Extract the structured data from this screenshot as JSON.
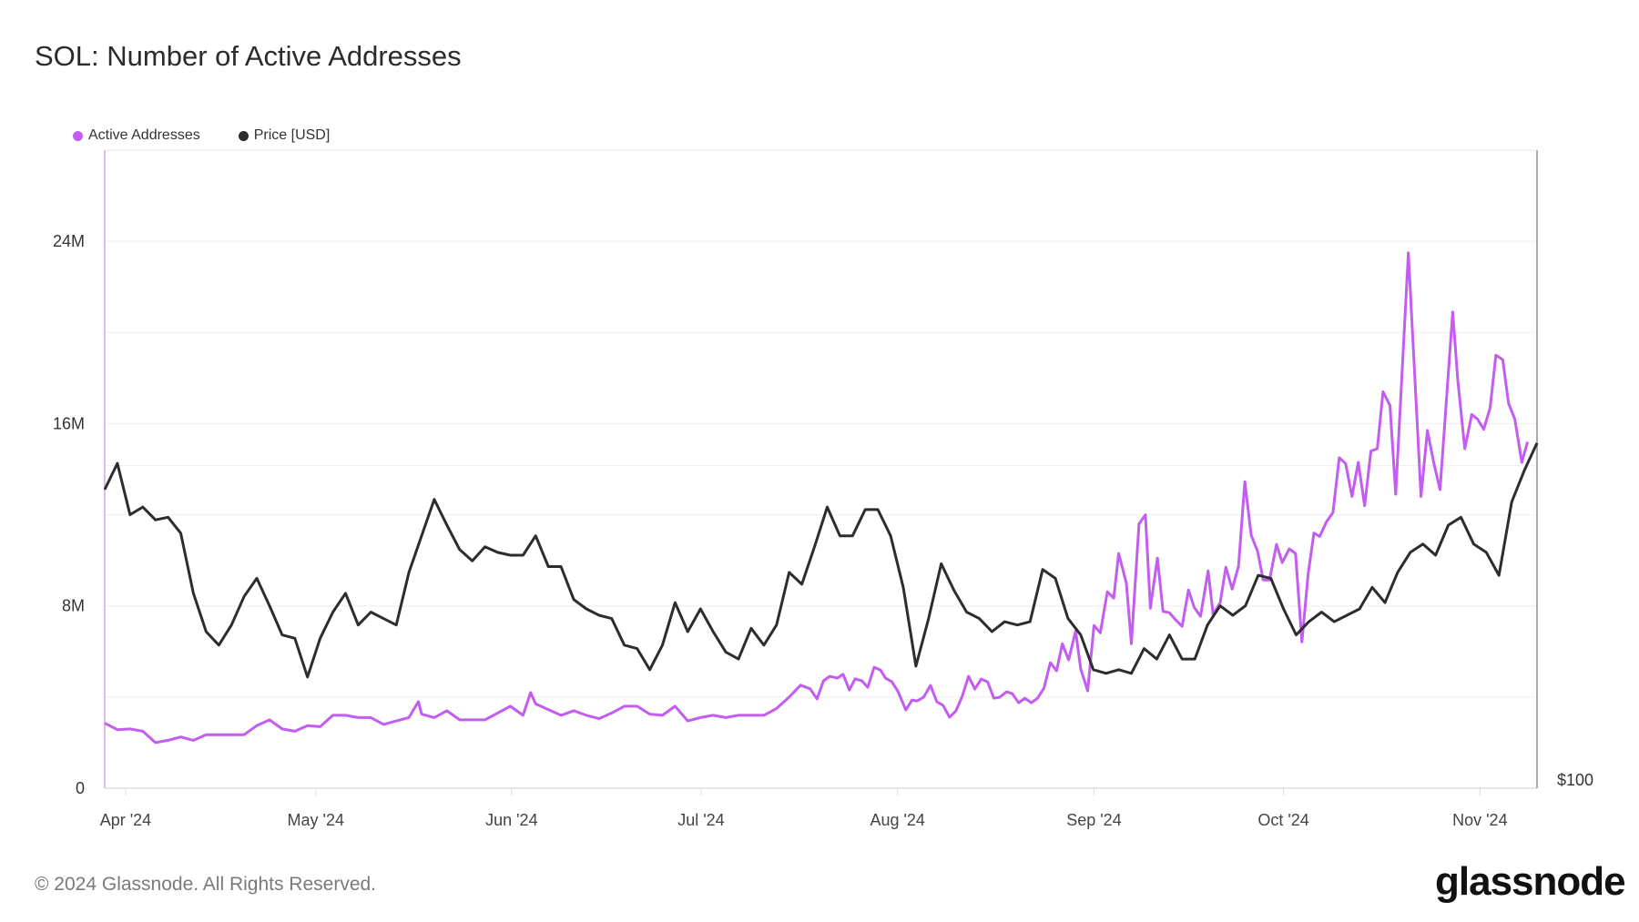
{
  "header": {
    "title": "SOL: Number of Active Addresses"
  },
  "footer": {
    "copyright": "© 2024 Glassnode. All Rights Reserved.",
    "logo": "glassnode"
  },
  "chart_data": {
    "type": "line",
    "title": "SOL: Number of Active Addresses",
    "legend": [
      {
        "label": "Active Addresses",
        "color": "#c35cf0"
      },
      {
        "label": "Price [USD]",
        "color": "#2d2d2d"
      }
    ],
    "legend_placement": "top-left",
    "x_range_days": [
      0,
      226
    ],
    "x_start_date": "2024-03-29",
    "x_ticks": [
      {
        "label": "Apr '24",
        "day": 3.3
      },
      {
        "label": "May '24",
        "day": 33.3
      },
      {
        "label": "Jun '24",
        "day": 64.2
      },
      {
        "label": "Jul '24",
        "day": 94.1
      },
      {
        "label": "Aug '24",
        "day": 125.1
      },
      {
        "label": "Sep '24",
        "day": 156.1
      },
      {
        "label": "Oct '24",
        "day": 186.0
      },
      {
        "label": "Nov '24",
        "day": 217.0
      }
    ],
    "y_left": {
      "range": [
        0,
        28000000
      ],
      "ticks": [
        {
          "label": "0",
          "value": 0
        },
        {
          "label": "8M",
          "value": 8000000
        },
        {
          "label": "16M",
          "value": 16000000
        },
        {
          "label": "24M",
          "value": 24000000
        }
      ],
      "gridlines": [
        4000000,
        8000000,
        12000000,
        16000000,
        20000000,
        24000000
      ]
    },
    "y_right": {
      "scale": "log",
      "range": [
        100,
        394
      ],
      "ticks": [
        {
          "label": "$100",
          "value": 100
        }
      ],
      "gridlines": [
        200
      ]
    },
    "series": [
      {
        "name": "Active Addresses",
        "color": "#c35cf0",
        "unit": "millions",
        "points": [
          [
            0,
            2.85
          ],
          [
            2,
            2.57
          ],
          [
            4,
            2.6
          ],
          [
            6,
            2.5
          ],
          [
            8,
            2.0
          ],
          [
            10,
            2.1
          ],
          [
            12,
            2.25
          ],
          [
            14,
            2.1
          ],
          [
            16,
            2.35
          ],
          [
            18,
            2.35
          ],
          [
            20,
            2.35
          ],
          [
            22,
            2.35
          ],
          [
            24,
            2.75
          ],
          [
            26,
            3.0
          ],
          [
            28,
            2.6
          ],
          [
            30,
            2.5
          ],
          [
            32,
            2.75
          ],
          [
            34,
            2.7
          ],
          [
            36,
            3.2
          ],
          [
            38,
            3.2
          ],
          [
            40,
            3.1
          ],
          [
            42,
            3.1
          ],
          [
            44,
            2.8
          ],
          [
            46,
            2.95
          ],
          [
            48,
            3.1
          ],
          [
            49.5,
            3.8
          ],
          [
            50,
            3.25
          ],
          [
            52,
            3.1
          ],
          [
            54,
            3.4
          ],
          [
            56,
            3.0
          ],
          [
            58,
            3.0
          ],
          [
            60,
            3.0
          ],
          [
            62,
            3.3
          ],
          [
            64,
            3.6
          ],
          [
            66,
            3.2
          ],
          [
            67.2,
            4.2
          ],
          [
            68,
            3.7
          ],
          [
            70,
            3.45
          ],
          [
            72,
            3.2
          ],
          [
            74,
            3.4
          ],
          [
            76,
            3.2
          ],
          [
            78,
            3.05
          ],
          [
            80,
            3.3
          ],
          [
            82,
            3.6
          ],
          [
            84,
            3.6
          ],
          [
            86,
            3.25
          ],
          [
            88,
            3.2
          ],
          [
            90,
            3.6
          ],
          [
            92,
            2.95
          ],
          [
            94,
            3.1
          ],
          [
            96,
            3.2
          ],
          [
            98,
            3.1
          ],
          [
            100,
            3.2
          ],
          [
            102,
            3.2
          ],
          [
            104,
            3.2
          ],
          [
            106,
            3.5
          ],
          [
            108,
            4.0
          ],
          [
            109.8,
            4.52
          ],
          [
            111.3,
            4.36
          ],
          [
            112.4,
            3.92
          ],
          [
            113.4,
            4.71
          ],
          [
            114.4,
            4.91
          ],
          [
            115.6,
            4.83
          ],
          [
            116.5,
            5.0
          ],
          [
            117.5,
            4.31
          ],
          [
            118.4,
            4.8
          ],
          [
            119.5,
            4.71
          ],
          [
            120.4,
            4.43
          ],
          [
            121.4,
            5.31
          ],
          [
            122.4,
            5.19
          ],
          [
            123.2,
            4.83
          ],
          [
            124.2,
            4.67
          ],
          [
            125.2,
            4.23
          ],
          [
            126.4,
            3.43
          ],
          [
            127.4,
            3.87
          ],
          [
            128.2,
            3.83
          ],
          [
            129.2,
            3.99
          ],
          [
            130.3,
            4.51
          ],
          [
            131.3,
            3.79
          ],
          [
            132.3,
            3.63
          ],
          [
            133.3,
            3.11
          ],
          [
            134.3,
            3.39
          ],
          [
            135.3,
            4.03
          ],
          [
            136.3,
            4.91
          ],
          [
            137.3,
            4.35
          ],
          [
            138.3,
            4.79
          ],
          [
            139.3,
            4.67
          ],
          [
            140.3,
            3.95
          ],
          [
            141.2,
            3.99
          ],
          [
            142.3,
            4.23
          ],
          [
            143.2,
            4.15
          ],
          [
            144.2,
            3.75
          ],
          [
            145.2,
            3.95
          ],
          [
            146.2,
            3.75
          ],
          [
            147.2,
            3.95
          ],
          [
            148.2,
            4.39
          ],
          [
            149.2,
            5.51
          ],
          [
            150.2,
            5.15
          ],
          [
            151.1,
            6.34
          ],
          [
            152.1,
            5.63
          ],
          [
            153.2,
            6.9
          ],
          [
            154.0,
            5.23
          ],
          [
            155.1,
            4.27
          ],
          [
            156.1,
            7.14
          ],
          [
            157.1,
            6.82
          ],
          [
            158.2,
            8.62
          ],
          [
            159.2,
            8.34
          ],
          [
            160.0,
            10.3
          ],
          [
            161.2,
            9.0
          ],
          [
            162.0,
            6.34
          ],
          [
            163.2,
            11.6
          ],
          [
            164.2,
            12.0
          ],
          [
            165.0,
            7.9
          ],
          [
            166.1,
            10.1
          ],
          [
            167.0,
            7.76
          ],
          [
            168.0,
            7.7
          ],
          [
            169.0,
            7.38
          ],
          [
            170.0,
            7.1
          ],
          [
            171.0,
            8.7
          ],
          [
            171.9,
            7.94
          ],
          [
            172.9,
            7.54
          ],
          [
            174.1,
            9.54
          ],
          [
            174.9,
            7.62
          ],
          [
            176.0,
            8.14
          ],
          [
            176.9,
            9.7
          ],
          [
            177.9,
            8.74
          ],
          [
            178.9,
            9.74
          ],
          [
            179.9,
            13.45
          ],
          [
            180.9,
            11.1
          ],
          [
            181.9,
            10.4
          ],
          [
            182.8,
            9.14
          ],
          [
            183.8,
            9.14
          ],
          [
            184.9,
            10.7
          ],
          [
            185.8,
            9.9
          ],
          [
            186.9,
            10.5
          ],
          [
            187.9,
            10.3
          ],
          [
            188.9,
            6.42
          ],
          [
            189.9,
            9.42
          ],
          [
            190.8,
            11.2
          ],
          [
            191.7,
            11.05
          ],
          [
            192.8,
            11.7
          ],
          [
            193.8,
            12.1
          ],
          [
            194.8,
            14.5
          ],
          [
            195.8,
            14.25
          ],
          [
            196.8,
            12.8
          ],
          [
            197.8,
            14.3
          ],
          [
            198.8,
            12.4
          ],
          [
            199.8,
            14.8
          ],
          [
            200.8,
            14.9
          ],
          [
            201.7,
            17.4
          ],
          [
            202.8,
            16.8
          ],
          [
            203.7,
            12.9
          ],
          [
            205.7,
            23.5
          ],
          [
            207.7,
            12.8
          ],
          [
            208.7,
            15.7
          ],
          [
            209.7,
            14.3
          ],
          [
            210.7,
            13.1
          ],
          [
            212.7,
            20.9
          ],
          [
            213.5,
            17.9
          ],
          [
            214.6,
            14.9
          ],
          [
            215.7,
            16.4
          ],
          [
            216.6,
            16.2
          ],
          [
            217.6,
            15.75
          ],
          [
            218.6,
            16.7
          ],
          [
            219.5,
            19.0
          ],
          [
            220.6,
            18.8
          ],
          [
            221.5,
            16.9
          ],
          [
            222.5,
            16.2
          ],
          [
            223.6,
            14.3
          ],
          [
            224.5,
            15.2
          ]
        ]
      },
      {
        "name": "Price [USD]",
        "color": "#2d2d2d",
        "unit": "USD",
        "start_day": 0,
        "step_days": 2,
        "values": [
          190,
          201,
          180,
          183,
          178,
          179,
          173,
          152,
          140,
          136,
          142,
          151,
          157,
          148,
          139,
          138,
          127,
          138,
          146,
          152,
          142,
          146,
          144,
          142,
          159,
          172,
          186,
          176,
          167,
          163,
          168,
          166,
          165,
          165,
          172,
          161,
          161,
          150,
          147,
          145,
          144,
          136,
          135,
          129,
          136,
          149,
          140,
          147,
          140,
          134,
          132,
          141,
          136,
          142,
          159,
          155,
          168,
          183,
          172,
          172,
          182,
          182,
          172,
          154,
          130,
          144,
          162,
          153,
          146,
          144,
          140,
          143,
          142,
          143,
          160,
          157,
          144,
          139,
          129,
          128,
          129,
          128,
          135,
          132,
          139,
          132,
          132,
          142,
          148,
          145,
          148,
          158,
          157,
          147,
          139,
          143,
          146,
          143,
          145,
          147,
          154,
          149,
          159,
          166,
          169,
          165,
          176,
          179,
          169,
          166,
          158,
          185,
          198,
          210
        ]
      }
    ]
  }
}
